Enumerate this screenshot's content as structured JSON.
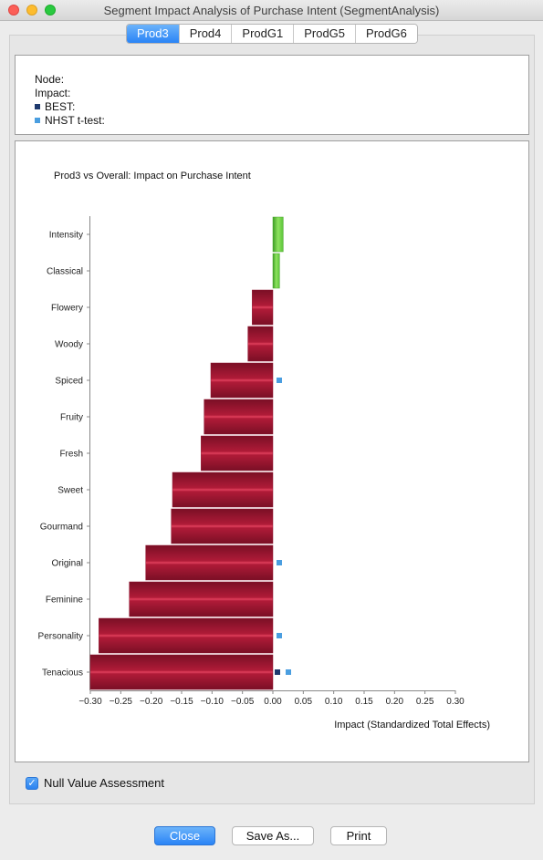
{
  "window": {
    "title": "Segment Impact Analysis of Purchase Intent (SegmentAnalysis)"
  },
  "tabs": [
    {
      "label": "Prod3",
      "selected": true
    },
    {
      "label": "Prod4",
      "selected": false
    },
    {
      "label": "ProdG1",
      "selected": false
    },
    {
      "label": "ProdG5",
      "selected": false
    },
    {
      "label": "ProdG6",
      "selected": false
    }
  ],
  "info": {
    "node_label": "Node:",
    "impact_label": "Impact:",
    "best_label": "BEST:",
    "nhst_label": "NHST t-test:",
    "best_color": "#1f3a6e",
    "nhst_color": "#4a9ee0"
  },
  "chart_data": {
    "type": "bar",
    "orientation": "horizontal",
    "title": "Prod3 vs Overall: Impact on Purchase Intent",
    "xlabel": "Impact (Standardized Total Effects)",
    "ylabel": "",
    "xlim": [
      -0.3,
      0.3
    ],
    "xticks": [
      "−0.30",
      "−0.25",
      "−0.20",
      "−0.15",
      "−0.10",
      "−0.05",
      "0.00",
      "0.05",
      "0.10",
      "0.15",
      "0.20",
      "0.25",
      "0.30"
    ],
    "categories": [
      "Intensity",
      "Classical",
      "Flowery",
      "Woody",
      "Spiced",
      "Fruity",
      "Fresh",
      "Sweet",
      "Gourmand",
      "Original",
      "Feminine",
      "Personality",
      "Tenacious"
    ],
    "values": [
      0.017,
      0.011,
      -0.034,
      -0.041,
      -0.102,
      -0.113,
      -0.118,
      -0.165,
      -0.167,
      -0.209,
      -0.236,
      -0.286,
      -0.3
    ],
    "positive_color": "#5cc43a",
    "negative_color": "#b01b38",
    "nhst_markers": [
      "Spiced",
      "Original",
      "Personality",
      "Tenacious"
    ],
    "best_markers": [
      "Tenacious"
    ]
  },
  "null_value": {
    "label": "Null Value Assessment",
    "checked": true
  },
  "buttons": {
    "close": "Close",
    "save_as": "Save As...",
    "print": "Print"
  }
}
